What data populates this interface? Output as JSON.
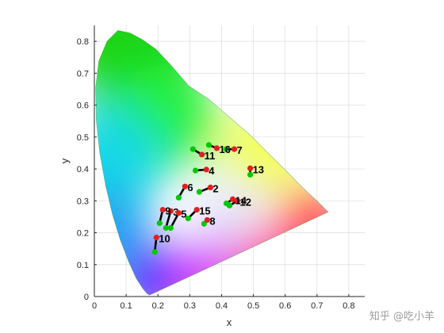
{
  "watermark": "知乎 @吃小羊",
  "colors": {
    "start_marker": "#00c800",
    "end_marker": "#e02020",
    "connector": "#000000",
    "grid": "#dcdcdc",
    "axis": "#262626"
  },
  "chart_data": {
    "type": "scatter",
    "title": "",
    "xlabel": "x",
    "ylabel": "y",
    "xlim": [
      0,
      0.85
    ],
    "ylim": [
      0,
      0.85
    ],
    "xticks": [
      "0",
      "0.1",
      "0.2",
      "0.3",
      "0.4",
      "0.5",
      "0.6",
      "0.7",
      "0.8"
    ],
    "yticks": [
      "0",
      "0.1",
      "0.2",
      "0.3",
      "0.4",
      "0.5",
      "0.6",
      "0.7",
      "0.8"
    ],
    "grid": true,
    "background": "CIE 1931 chromaticity diagram (spectral locus filled with colors)",
    "locus": [
      [
        0.175,
        0.005
      ],
      [
        0.172,
        0.005
      ],
      [
        0.166,
        0.009
      ],
      [
        0.153,
        0.024
      ],
      [
        0.132,
        0.056
      ],
      [
        0.108,
        0.109
      ],
      [
        0.081,
        0.179
      ],
      [
        0.057,
        0.257
      ],
      [
        0.036,
        0.346
      ],
      [
        0.017,
        0.451
      ],
      [
        0.006,
        0.552
      ],
      [
        0.004,
        0.655
      ],
      [
        0.014,
        0.738
      ],
      [
        0.04,
        0.8
      ],
      [
        0.074,
        0.834
      ],
      [
        0.113,
        0.826
      ],
      [
        0.15,
        0.806
      ],
      [
        0.193,
        0.776
      ],
      [
        0.24,
        0.726
      ],
      [
        0.297,
        0.66
      ],
      [
        0.359,
        0.619
      ],
      [
        0.423,
        0.564
      ],
      [
        0.488,
        0.508
      ],
      [
        0.548,
        0.448
      ],
      [
        0.603,
        0.394
      ],
      [
        0.647,
        0.349
      ],
      [
        0.681,
        0.317
      ],
      [
        0.704,
        0.296
      ],
      [
        0.72,
        0.28
      ],
      [
        0.735,
        0.265
      ]
    ],
    "points": [
      {
        "label": "2",
        "start": [
          0.33,
          0.328
        ],
        "end": [
          0.365,
          0.342
        ]
      },
      {
        "label": "3",
        "start": [
          0.225,
          0.215
        ],
        "end": [
          0.24,
          0.268
        ]
      },
      {
        "label": "4",
        "start": [
          0.318,
          0.395
        ],
        "end": [
          0.352,
          0.398
        ]
      },
      {
        "label": "5",
        "start": [
          0.24,
          0.215
        ],
        "end": [
          0.265,
          0.262
        ]
      },
      {
        "label": "6",
        "start": [
          0.265,
          0.31
        ],
        "end": [
          0.285,
          0.345
        ]
      },
      {
        "label": "7",
        "start": [
          0.415,
          0.462
        ],
        "end": [
          0.44,
          0.462
        ]
      },
      {
        "label": "8",
        "start": [
          0.345,
          0.228
        ],
        "end": [
          0.355,
          0.24
        ]
      },
      {
        "label": "9",
        "start": [
          0.205,
          0.23
        ],
        "end": [
          0.215,
          0.272
        ]
      },
      {
        "label": "10",
        "start": [
          0.19,
          0.14
        ],
        "end": [
          0.195,
          0.185
        ]
      },
      {
        "label": "11",
        "start": [
          0.31,
          0.462
        ],
        "end": [
          0.338,
          0.445
        ]
      },
      {
        "label": "12",
        "start": [
          0.425,
          0.285
        ],
        "end": [
          0.45,
          0.3
        ]
      },
      {
        "label": "13",
        "start": [
          0.49,
          0.382
        ],
        "end": [
          0.49,
          0.402
        ]
      },
      {
        "label": "14",
        "start": [
          0.415,
          0.292
        ],
        "end": [
          0.435,
          0.305
        ]
      },
      {
        "label": "15",
        "start": [
          0.295,
          0.245
        ],
        "end": [
          0.322,
          0.272
        ]
      },
      {
        "label": "16",
        "start": [
          0.36,
          0.475
        ],
        "end": [
          0.385,
          0.465
        ]
      }
    ]
  }
}
